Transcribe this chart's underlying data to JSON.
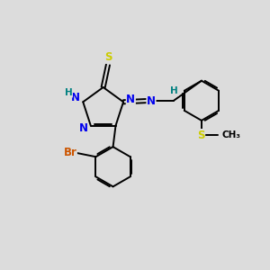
{
  "bg_color": "#dcdcdc",
  "atom_colors": {
    "N": "#0000ee",
    "S": "#cccc00",
    "Br": "#cc5500",
    "C": "#000000",
    "H": "#008080"
  },
  "bond_color": "#000000",
  "lw": 1.4,
  "fs": 8.5,
  "fs_small": 7.5
}
